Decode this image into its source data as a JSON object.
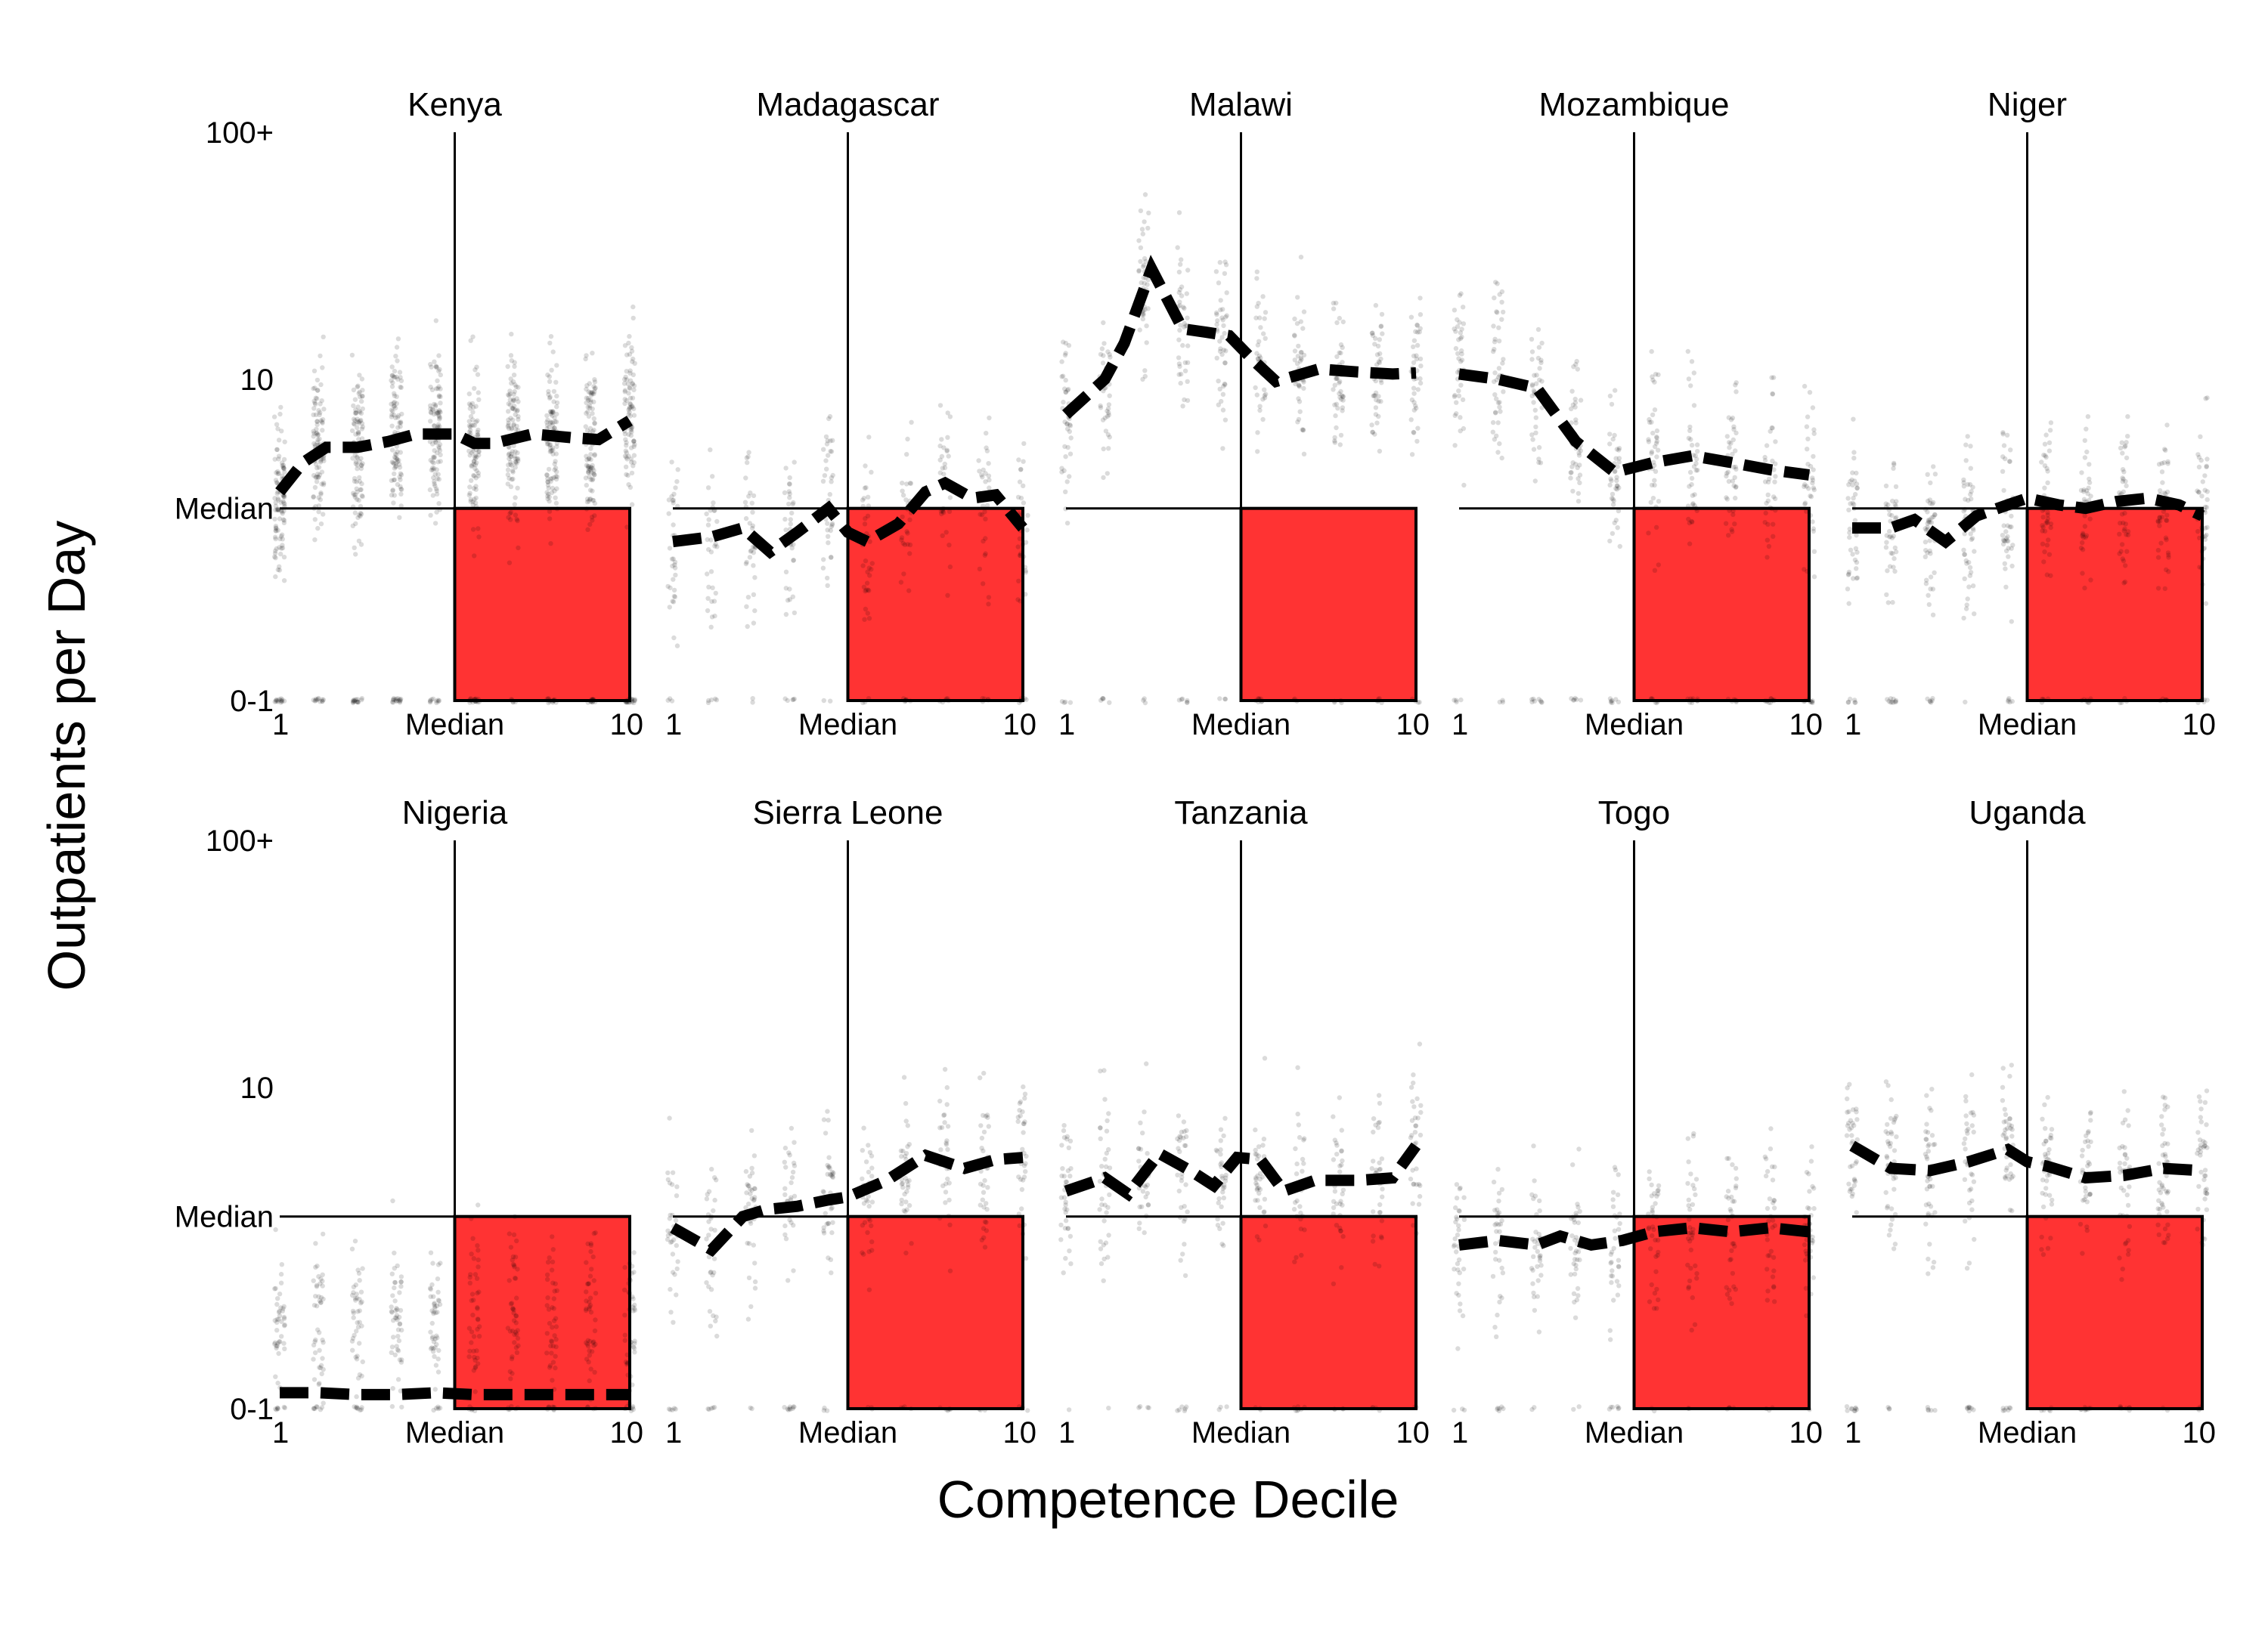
{
  "chart_data": {
    "type": "scatter",
    "xlabel": "Competence Decile",
    "ylabel": "Outpatients per Day",
    "x_ticks": [
      {
        "value": 1,
        "label": "1"
      },
      {
        "value": 5.5,
        "label": "Median"
      },
      {
        "value": 10,
        "label": "10"
      }
    ],
    "y_ticks": [
      {
        "value": 0.5,
        "label": "0-1"
      },
      {
        "value": 3,
        "label": "Median"
      },
      {
        "value": 10,
        "label": "10"
      },
      {
        "value": 100,
        "label": "100+"
      }
    ],
    "y_scale": "log",
    "xlim": [
      1,
      10
    ],
    "ylim": [
      0.5,
      100
    ],
    "grid": false,
    "median": {
      "x": 5.5,
      "y": 3
    },
    "highlight_quadrant": {
      "description": "above-median competence, below-median outpatients",
      "color": "#ff3333"
    },
    "point_color": "#000000",
    "line_color": "#000000",
    "panels": [
      {
        "country": "Kenya",
        "density": 3.0,
        "line": [
          [
            1,
            3.5
          ],
          [
            1.6,
            4.6
          ],
          [
            2.2,
            5.3
          ],
          [
            3,
            5.3
          ],
          [
            3.8,
            5.6
          ],
          [
            4.5,
            6
          ],
          [
            5.5,
            6
          ],
          [
            6,
            5.5
          ],
          [
            6.5,
            5.5
          ],
          [
            7.5,
            6
          ],
          [
            8.5,
            5.8
          ],
          [
            9.2,
            5.7
          ],
          [
            10,
            6.8
          ]
        ]
      },
      {
        "country": "Madagascar",
        "density": 1.0,
        "line": [
          [
            1,
            2.2
          ],
          [
            2,
            2.3
          ],
          [
            2.8,
            2.5
          ],
          [
            3.5,
            2
          ],
          [
            4.2,
            2.4
          ],
          [
            5,
            3
          ],
          [
            5.5,
            2.4
          ],
          [
            6,
            2.2
          ],
          [
            6.8,
            2.6
          ],
          [
            7.5,
            3.5
          ],
          [
            8,
            3.8
          ],
          [
            8.7,
            3.3
          ],
          [
            9.3,
            3.4
          ],
          [
            10,
            2.5
          ]
        ]
      },
      {
        "country": "Malawi",
        "density": 1.2,
        "line": [
          [
            1,
            7.2
          ],
          [
            2,
            10
          ],
          [
            2.5,
            14
          ],
          [
            3.2,
            28
          ],
          [
            4,
            16
          ],
          [
            4.6,
            15.5
          ],
          [
            5.2,
            15
          ],
          [
            5.8,
            12
          ],
          [
            6.4,
            9.8
          ],
          [
            7.5,
            11
          ],
          [
            8.5,
            10.7
          ],
          [
            9.4,
            10.5
          ],
          [
            10,
            10.6
          ]
        ]
      },
      {
        "country": "Mozambique",
        "density": 1.2,
        "line": [
          [
            1,
            10.5
          ],
          [
            2,
            10
          ],
          [
            3,
            9.2
          ],
          [
            4,
            5.6
          ],
          [
            5,
            4.2
          ],
          [
            6,
            4.6
          ],
          [
            7,
            4.9
          ],
          [
            8,
            4.6
          ],
          [
            9,
            4.3
          ],
          [
            10,
            4.1
          ]
        ]
      },
      {
        "country": "Niger",
        "density": 1.3,
        "line": [
          [
            1,
            2.5
          ],
          [
            2,
            2.5
          ],
          [
            2.6,
            2.7
          ],
          [
            3.4,
            2.2
          ],
          [
            4.2,
            2.8
          ],
          [
            5,
            3.1
          ],
          [
            5.5,
            3.3
          ],
          [
            6.3,
            3.1
          ],
          [
            7,
            3
          ],
          [
            7.8,
            3.2
          ],
          [
            8.6,
            3.3
          ],
          [
            9.4,
            3.1
          ],
          [
            10,
            2.8
          ]
        ]
      },
      {
        "country": "Nigeria",
        "density": 1.3,
        "line": [
          [
            1,
            0.58
          ],
          [
            2,
            0.58
          ],
          [
            3,
            0.57
          ],
          [
            4,
            0.57
          ],
          [
            5,
            0.58
          ],
          [
            6,
            0.57
          ],
          [
            7,
            0.57
          ],
          [
            8,
            0.57
          ],
          [
            9,
            0.57
          ],
          [
            10,
            0.57
          ]
        ]
      },
      {
        "country": "Sierra Leone",
        "density": 1.0,
        "line": [
          [
            1,
            2.7
          ],
          [
            2,
            2.2
          ],
          [
            2.8,
            3
          ],
          [
            3.4,
            3.2
          ],
          [
            4.2,
            3.3
          ],
          [
            5,
            3.5
          ],
          [
            5.5,
            3.6
          ],
          [
            6.5,
            4.2
          ],
          [
            7.5,
            5.3
          ],
          [
            8.5,
            4.7
          ],
          [
            9.3,
            5.1
          ],
          [
            10,
            5.2
          ]
        ]
      },
      {
        "country": "Tanzania",
        "density": 1.0,
        "line": [
          [
            1,
            3.8
          ],
          [
            2,
            4.3
          ],
          [
            2.6,
            3.7
          ],
          [
            3.4,
            5.4
          ],
          [
            4.2,
            4.6
          ],
          [
            4.8,
            4
          ],
          [
            5.4,
            5.2
          ],
          [
            6,
            5.1
          ],
          [
            6.6,
            3.8
          ],
          [
            7.4,
            4.2
          ],
          [
            8.5,
            4.2
          ],
          [
            9.4,
            4.3
          ],
          [
            10,
            5.8
          ]
        ]
      },
      {
        "country": "Togo",
        "density": 1.0,
        "line": [
          [
            1,
            2.3
          ],
          [
            2,
            2.4
          ],
          [
            3,
            2.3
          ],
          [
            3.6,
            2.5
          ],
          [
            4.4,
            2.3
          ],
          [
            5.2,
            2.4
          ],
          [
            6,
            2.6
          ],
          [
            7,
            2.7
          ],
          [
            8,
            2.6
          ],
          [
            9,
            2.7
          ],
          [
            10,
            2.6
          ]
        ]
      },
      {
        "country": "Uganda",
        "density": 1.2,
        "line": [
          [
            1,
            5.8
          ],
          [
            2,
            4.7
          ],
          [
            3,
            4.6
          ],
          [
            4,
            5
          ],
          [
            5,
            5.6
          ],
          [
            5.5,
            5
          ],
          [
            6,
            4.8
          ],
          [
            7,
            4.3
          ],
          [
            8,
            4.4
          ],
          [
            9,
            4.7
          ],
          [
            10,
            4.6
          ]
        ]
      }
    ]
  }
}
